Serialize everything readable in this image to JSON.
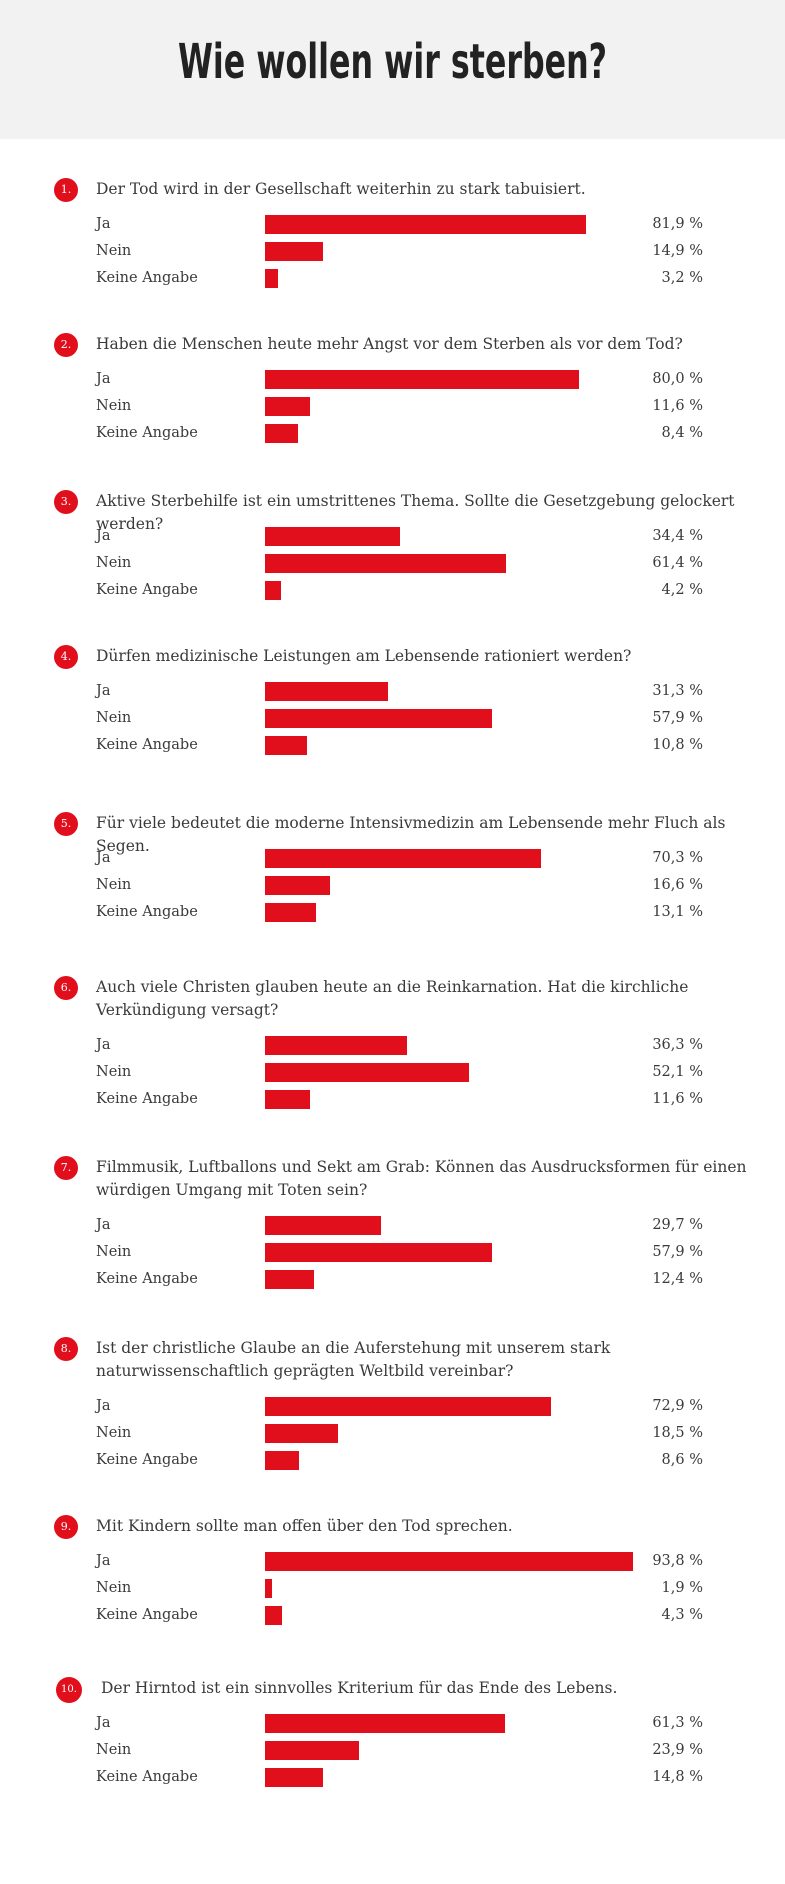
{
  "title": "Wie wollen wir sterben?",
  "colors": {
    "bar": "#e10e1b",
    "header_bg": "#f2f2f2",
    "text": "#3a3a3a"
  },
  "chart_data": {
    "type": "bar",
    "orientation": "horizontal",
    "title": "Wie wollen wir sterben?",
    "unit": "%",
    "categories": [
      "Ja",
      "Nein",
      "Keine Angabe"
    ],
    "questions": [
      {
        "number": "1.",
        "text": "Der Tod wird in der Gesellschaft weiterhin zu stark tabuisiert.",
        "answers": [
          {
            "label": "Ja",
            "value": 81.9,
            "display": "81,9 %"
          },
          {
            "label": "Nein",
            "value": 14.9,
            "display": "14,9 %"
          },
          {
            "label": "Keine Angabe",
            "value": 3.2,
            "display": "3,2 %"
          }
        ]
      },
      {
        "number": "2.",
        "text": "Haben die Menschen heute mehr Angst vor dem Sterben als vor dem Tod?",
        "answers": [
          {
            "label": "Ja",
            "value": 80.0,
            "display": "80,0 %"
          },
          {
            "label": "Nein",
            "value": 11.6,
            "display": "11,6 %"
          },
          {
            "label": "Keine Angabe",
            "value": 8.4,
            "display": "8,4 %"
          }
        ]
      },
      {
        "number": "3.",
        "text": "Aktive Sterbehilfe ist ein umstrittenes Thema. Sollte die Gesetzgebung gelockert werden?",
        "answers": [
          {
            "label": "Ja",
            "value": 34.4,
            "display": "34,4 %"
          },
          {
            "label": "Nein",
            "value": 61.4,
            "display": "61,4 %"
          },
          {
            "label": "Keine Angabe",
            "value": 4.2,
            "display": "4,2 %"
          }
        ]
      },
      {
        "number": "4.",
        "text": "Dürfen medizinische Leistungen am Lebensende rationiert werden?",
        "answers": [
          {
            "label": "Ja",
            "value": 31.3,
            "display": "31,3 %"
          },
          {
            "label": "Nein",
            "value": 57.9,
            "display": "57,9 %"
          },
          {
            "label": "Keine Angabe",
            "value": 10.8,
            "display": "10,8 %"
          }
        ]
      },
      {
        "number": "5.",
        "text": "Für viele bedeutet die moderne Intensivmedizin am Lebensende mehr Fluch als Segen.",
        "answers": [
          {
            "label": "Ja",
            "value": 70.3,
            "display": "70,3 %"
          },
          {
            "label": "Nein",
            "value": 16.6,
            "display": "16,6 %"
          },
          {
            "label": "Keine Angabe",
            "value": 13.1,
            "display": "13,1 %"
          }
        ]
      },
      {
        "number": "6.",
        "text": "Auch viele Christen glauben heute an die Reinkarnation. Hat die kirchliche Verkündigung versagt?",
        "answers": [
          {
            "label": "Ja",
            "value": 36.3,
            "display": "36,3 %"
          },
          {
            "label": "Nein",
            "value": 52.1,
            "display": "52,1 %"
          },
          {
            "label": "Keine Angabe",
            "value": 11.6,
            "display": "11,6 %"
          }
        ]
      },
      {
        "number": "7.",
        "text": "Filmmusik, Luftballons und Sekt am Grab: Können das Ausdrucksformen für einen würdigen Umgang mit Toten sein?",
        "answers": [
          {
            "label": "Ja",
            "value": 29.7,
            "display": "29,7 %"
          },
          {
            "label": "Nein",
            "value": 57.9,
            "display": "57,9 %"
          },
          {
            "label": "Keine Angabe",
            "value": 12.4,
            "display": "12,4 %"
          }
        ]
      },
      {
        "number": "8.",
        "text": "Ist der christliche Glaube an die Auferstehung mit unserem stark naturwissenschaftlich geprägten Weltbild vereinbar?",
        "answers": [
          {
            "label": "Ja",
            "value": 72.9,
            "display": "72,9 %"
          },
          {
            "label": "Nein",
            "value": 18.5,
            "display": "18,5 %"
          },
          {
            "label": "Keine Angabe",
            "value": 8.6,
            "display": "8,6 %"
          }
        ]
      },
      {
        "number": "9.",
        "text": "Mit Kindern sollte man offen über den Tod sprechen.",
        "answers": [
          {
            "label": "Ja",
            "value": 93.8,
            "display": "93,8 %"
          },
          {
            "label": "Nein",
            "value": 1.9,
            "display": "1,9 %"
          },
          {
            "label": "Keine Angabe",
            "value": 4.3,
            "display": "4,3 %"
          }
        ]
      },
      {
        "number": "10.",
        "text": "Der Hirntod ist ein sinnvolles Kriterium für das Ende des Lebens.",
        "answers": [
          {
            "label": "Ja",
            "value": 61.3,
            "display": "61,3 %"
          },
          {
            "label": "Nein",
            "value": 23.9,
            "display": "23,9 %"
          },
          {
            "label": "Keine Angabe",
            "value": 14.8,
            "display": "14,8 %"
          }
        ]
      }
    ]
  }
}
